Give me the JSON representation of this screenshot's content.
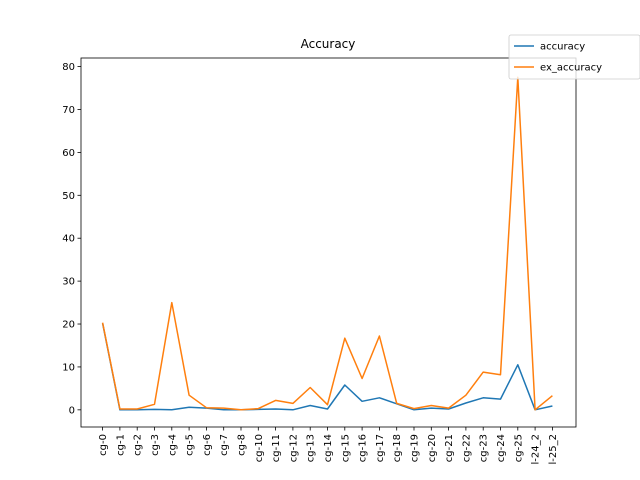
{
  "chart_data": {
    "type": "line",
    "title": "Accuracy",
    "xlabel": "",
    "ylabel": "",
    "ylim": [
      -4,
      82
    ],
    "yticks": [
      0,
      10,
      20,
      30,
      40,
      50,
      60,
      70,
      80
    ],
    "grid": false,
    "legend_placement": "top-right",
    "categories": [
      "cg-0",
      "cg-1",
      "cg-2",
      "cg-3",
      "cg-4",
      "cg-5",
      "cg-6",
      "cg-7",
      "cg-8",
      "cg-10",
      "cg-11",
      "cg-12",
      "cg-13",
      "cg-14",
      "cg-15",
      "cg-16",
      "cg-17",
      "cg-18",
      "cg-19",
      "cg-20",
      "cg-21",
      "cg-22",
      "cg-23",
      "cg-24",
      "cg-25",
      "l-24_2",
      "l-25_2"
    ],
    "series": [
      {
        "name": "accuracy",
        "color": "#1f77b4",
        "values": [
          20.2,
          0.0,
          0.0,
          0.1,
          0.0,
          0.6,
          0.4,
          0.0,
          0.0,
          0.1,
          0.2,
          0.0,
          1.0,
          0.2,
          5.8,
          2.0,
          2.8,
          1.4,
          0.0,
          0.4,
          0.2,
          1.6,
          2.8,
          2.5,
          10.5,
          0.0,
          0.9
        ]
      },
      {
        "name": "ex_accuracy",
        "color": "#ff7f0e",
        "values": [
          20.3,
          0.2,
          0.2,
          1.3,
          25.0,
          3.4,
          0.5,
          0.4,
          0.0,
          0.3,
          2.2,
          1.5,
          5.2,
          1.2,
          16.7,
          7.3,
          17.2,
          1.5,
          0.3,
          1.0,
          0.4,
          3.4,
          8.8,
          8.2,
          77.5,
          0.0,
          3.3
        ]
      }
    ]
  }
}
